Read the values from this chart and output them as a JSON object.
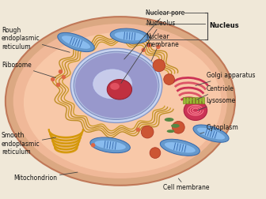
{
  "bg_color": "#f0e8d8",
  "cell_outer_color": "#dba882",
  "cell_fill_color": "#f0b898",
  "cell_inner_color": "#f8c8a8",
  "nuc_envelope_color": "#c8d4e8",
  "nuc_inner_color": "#b0b8d8",
  "nuc_plasma_color": "#9090c0",
  "nucleolus_color": "#c84848",
  "mito_outer": "#6699cc",
  "mito_inner": "#88bbee",
  "rough_er_color": "#c8a030",
  "smooth_er_color": "#d4980a",
  "golgi_color": "#d4880a",
  "lysosome_outer": "#cc3355",
  "lysosome_inner": "#ee6677",
  "ribosome_color": "#dd6644",
  "vesicle_color": "#cc5533",
  "green_color": "#558844",
  "label_color": "#111111",
  "line_color": "#444444",
  "labels": {
    "rough_er": "Rough\nendoplasmic\nreticulum",
    "ribosome": "Ribosome",
    "nuclear_pore": "Nuclear pore",
    "nucleolus": "Nucleolus",
    "nuclear_membrane": "Nuclear\nmembrane",
    "nucleus": "Nucleus",
    "golgi": "Golgi apparatus",
    "centriole": "Centriole",
    "lysosome": "Lysosome",
    "smooth_er": "Smooth\nendoplasmic\nreticulum",
    "mitochondrion": "Mitochondrion",
    "cytoplasm": "Cytoplasm",
    "cell_membrane": "Cell membrane"
  },
  "figsize": [
    3.36,
    2.52
  ],
  "dpi": 100
}
